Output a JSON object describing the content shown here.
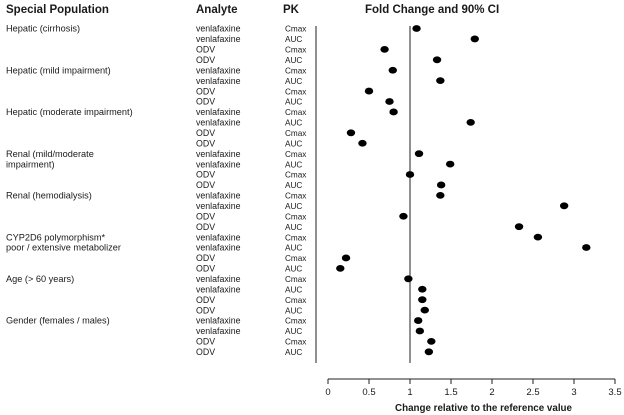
{
  "headers": {
    "population": "Special Population",
    "analyte": "Analyte",
    "pk": "PK",
    "plot_title": "Fold Change and 90% CI"
  },
  "chart_data": {
    "type": "scatter",
    "title": "Fold Change and 90% CI",
    "xlabel": "Change relative to the reference value",
    "xlim": [
      0,
      3.5
    ],
    "x_ticks": [
      0,
      0.5,
      1,
      1.5,
      2,
      2.5,
      3,
      3.5
    ],
    "x_tick_labels": [
      "0",
      "0.5",
      "1",
      "1.5",
      "2",
      "2.5",
      "3",
      "3.5"
    ],
    "reference_line": 1,
    "grid": false,
    "marker_color": "#000000",
    "groups": [
      {
        "population": "Hepatic (cirrhosis)",
        "rows": [
          {
            "analyte": "venlafaxine",
            "pk": "Cmax",
            "value": 1.08
          },
          {
            "analyte": "venlafaxine",
            "pk": "AUC",
            "value": 1.79
          },
          {
            "analyte": "ODV",
            "pk": "Cmax",
            "value": 0.69
          },
          {
            "analyte": "ODV",
            "pk": "AUC",
            "value": 1.33
          }
        ]
      },
      {
        "population": "Hepatic (mild impairment)",
        "rows": [
          {
            "analyte": "venlafaxine",
            "pk": "Cmax",
            "value": 0.79
          },
          {
            "analyte": "venlafaxine",
            "pk": "AUC",
            "value": 1.37
          },
          {
            "analyte": "ODV",
            "pk": "Cmax",
            "value": 0.5
          },
          {
            "analyte": "ODV",
            "pk": "AUC",
            "value": 0.75
          }
        ]
      },
      {
        "population": "Hepatic (moderate impairment)",
        "rows": [
          {
            "analyte": "venlafaxine",
            "pk": "Cmax",
            "value": 0.8
          },
          {
            "analyte": "venlafaxine",
            "pk": "AUC",
            "value": 1.74
          },
          {
            "analyte": "ODV",
            "pk": "Cmax",
            "value": 0.28
          },
          {
            "analyte": "ODV",
            "pk": "AUC",
            "value": 0.42
          }
        ]
      },
      {
        "population": "Renal (mild/moderate impairment)",
        "population_lines": [
          "Renal (mild/moderate",
          "impairment)"
        ],
        "rows": [
          {
            "analyte": "venlafaxine",
            "pk": "Cmax",
            "value": 1.11
          },
          {
            "analyte": "venlafaxine",
            "pk": "AUC",
            "value": 1.49
          },
          {
            "analyte": "ODV",
            "pk": "Cmax",
            "value": 1.0
          },
          {
            "analyte": "ODV",
            "pk": "AUC",
            "value": 1.38
          }
        ]
      },
      {
        "population": "Renal (hemodialysis)",
        "rows": [
          {
            "analyte": "venlafaxine",
            "pk": "Cmax",
            "value": 1.37
          },
          {
            "analyte": "venlafaxine",
            "pk": "AUC",
            "value": 2.88
          },
          {
            "analyte": "ODV",
            "pk": "Cmax",
            "value": 0.92
          },
          {
            "analyte": "ODV",
            "pk": "AUC",
            "value": 2.33
          }
        ]
      },
      {
        "population": "CYP2D6 polymorphism* poor / extensive metabolizer",
        "population_lines": [
          "CYP2D6 polymorphism*",
          "poor / extensive metabolizer"
        ],
        "rows": [
          {
            "analyte": "venlafaxine",
            "pk": "Cmax",
            "value": 2.56
          },
          {
            "analyte": "venlafaxine",
            "pk": "AUC",
            "value": 3.15
          },
          {
            "analyte": "ODV",
            "pk": "Cmax",
            "value": 0.22
          },
          {
            "analyte": "ODV",
            "pk": "AUC",
            "value": 0.15
          }
        ]
      },
      {
        "population": "Age (> 60 years)",
        "rows": [
          {
            "analyte": "venlafaxine",
            "pk": "Cmax",
            "value": 0.98
          },
          {
            "analyte": "venlafaxine",
            "pk": "AUC",
            "value": 1.15
          },
          {
            "analyte": "ODV",
            "pk": "Cmax",
            "value": 1.15
          },
          {
            "analyte": "ODV",
            "pk": "AUC",
            "value": 1.18
          }
        ]
      },
      {
        "population": "Gender (females / males)",
        "rows": [
          {
            "analyte": "venlafaxine",
            "pk": "Cmax",
            "value": 1.1
          },
          {
            "analyte": "venlafaxine",
            "pk": "AUC",
            "value": 1.12
          },
          {
            "analyte": "ODV",
            "pk": "Cmax",
            "value": 1.26
          },
          {
            "analyte": "ODV",
            "pk": "AUC",
            "value": 1.23
          }
        ]
      }
    ]
  }
}
